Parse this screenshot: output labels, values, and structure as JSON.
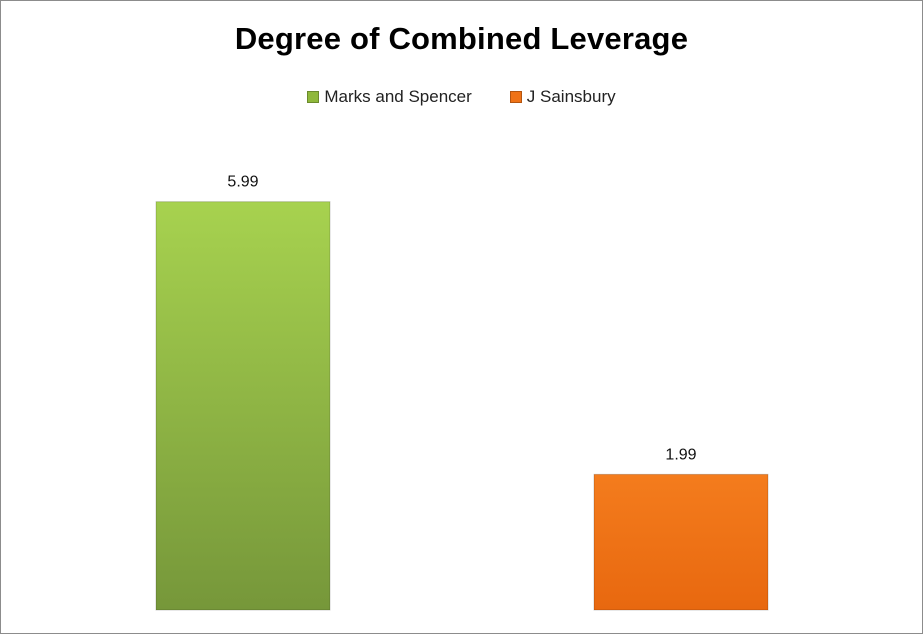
{
  "chart_data": {
    "type": "bar",
    "title": "Degree of Combined Leverage",
    "xlabel": "",
    "ylabel": "",
    "ylim": [
      0,
      6.0
    ],
    "grid": false,
    "legend_position": "top",
    "series": [
      {
        "name": "Marks and Spencer",
        "values": [
          5.99
        ],
        "color": "#8fb83b"
      },
      {
        "name": "J Sainsbury",
        "values": [
          1.99
        ],
        "color": "#ef7216"
      }
    ]
  }
}
